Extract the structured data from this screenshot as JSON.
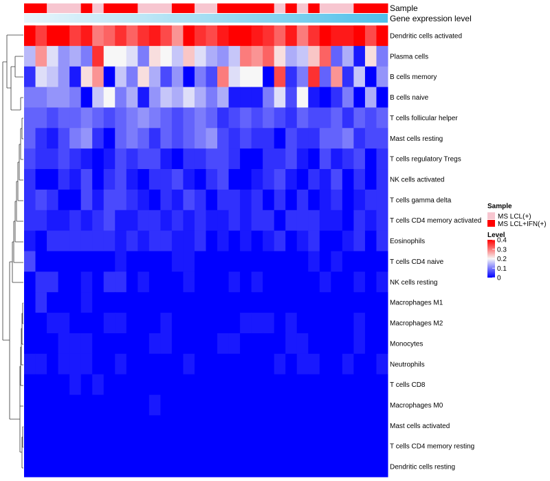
{
  "chart_data": {
    "type": "heatmap",
    "annotation_labels": {
      "sample": "Sample",
      "gene_expression": "Gene expression level"
    },
    "rows": [
      "Dendritic cells activated",
      "Plasma cells",
      "B cells memory",
      "B cells naive",
      "T cells follicular helper",
      "Mast cells resting",
      "T cells regulatory  Tregs",
      "NK cells activated",
      "T cells gamma delta",
      "T cells CD4 memory activated",
      "Eosinophils",
      "T cells CD4 naive",
      "NK cells resting",
      "Macrophages M1",
      "Macrophages M2",
      "Monocytes",
      "Neutrophils",
      "T cells CD8",
      "Macrophages M0",
      "Mast cells activated",
      "T cells CD4 memory resting",
      "Dendritic cells resting"
    ],
    "column_samples": [
      1,
      1,
      0,
      0,
      0,
      1,
      0,
      1,
      1,
      1,
      0,
      0,
      0,
      1,
      1,
      0,
      0,
      1,
      1,
      1,
      1,
      1,
      0,
      1,
      0,
      1,
      0,
      0,
      0,
      1,
      1,
      1
    ],
    "values": [
      [
        0.4,
        0.35,
        0.4,
        0.4,
        0.35,
        0.38,
        0.3,
        0.32,
        0.36,
        0.32,
        0.36,
        0.38,
        0.34,
        0.28,
        0.4,
        0.36,
        0.34,
        0.38,
        0.4,
        0.4,
        0.38,
        0.36,
        0.32,
        0.38,
        0.3,
        0.36,
        0.4,
        0.38,
        0.38,
        0.4,
        0.34,
        0.4
      ],
      [
        0.15,
        0.28,
        0.18,
        0.12,
        0.14,
        0.1,
        0.36,
        0.2,
        0.2,
        0.18,
        0.1,
        0.22,
        0.2,
        0.16,
        0.24,
        0.18,
        0.14,
        0.12,
        0.16,
        0.3,
        0.28,
        0.32,
        0.22,
        0.14,
        0.16,
        0.24,
        0.32,
        0.08,
        0.14,
        0.02,
        0.22,
        0.1
      ],
      [
        0.04,
        0.18,
        0.16,
        0.12,
        0.02,
        0.22,
        0.28,
        0.0,
        0.16,
        0.1,
        0.22,
        0.14,
        0.06,
        0.12,
        0.0,
        0.1,
        0.06,
        0.3,
        0.18,
        0.2,
        0.2,
        0.0,
        0.34,
        0.04,
        0.1,
        0.36,
        0.08,
        0.28,
        0.04,
        0.16,
        0.0,
        0.12
      ],
      [
        0.1,
        0.1,
        0.12,
        0.12,
        0.1,
        0.0,
        0.16,
        0.2,
        0.1,
        0.14,
        0.02,
        0.12,
        0.16,
        0.14,
        0.18,
        0.14,
        0.1,
        0.14,
        0.02,
        0.02,
        0.02,
        0.1,
        0.18,
        0.06,
        0.2,
        0.02,
        0.0,
        0.04,
        0.1,
        0.0,
        0.14,
        0.0
      ],
      [
        0.08,
        0.08,
        0.06,
        0.08,
        0.08,
        0.1,
        0.08,
        0.06,
        0.08,
        0.1,
        0.12,
        0.1,
        0.08,
        0.06,
        0.08,
        0.1,
        0.08,
        0.04,
        0.06,
        0.08,
        0.06,
        0.08,
        0.06,
        0.04,
        0.08,
        0.06,
        0.06,
        0.08,
        0.04,
        0.08,
        0.06,
        0.08
      ],
      [
        0.08,
        0.04,
        0.02,
        0.06,
        0.1,
        0.12,
        0.04,
        0.0,
        0.08,
        0.1,
        0.08,
        0.04,
        0.08,
        0.06,
        0.08,
        0.1,
        0.12,
        0.06,
        0.04,
        0.06,
        0.04,
        0.04,
        0.0,
        0.06,
        0.04,
        0.04,
        0.08,
        0.08,
        0.1,
        0.04,
        0.06,
        0.06
      ],
      [
        0.06,
        0.04,
        0.04,
        0.06,
        0.04,
        0.02,
        0.0,
        0.02,
        0.06,
        0.04,
        0.06,
        0.06,
        0.02,
        0.0,
        0.04,
        0.04,
        0.06,
        0.06,
        0.04,
        0.0,
        0.0,
        0.04,
        0.04,
        0.06,
        0.02,
        0.0,
        0.06,
        0.02,
        0.04,
        0.06,
        0.0,
        0.04
      ],
      [
        0.04,
        0.0,
        0.0,
        0.04,
        0.02,
        0.06,
        0.0,
        0.04,
        0.06,
        0.02,
        0.0,
        0.04,
        0.04,
        0.06,
        0.02,
        0.0,
        0.04,
        0.06,
        0.0,
        0.0,
        0.02,
        0.04,
        0.06,
        0.02,
        0.0,
        0.04,
        0.02,
        0.06,
        0.0,
        0.04,
        0.0,
        0.04
      ],
      [
        0.04,
        0.06,
        0.04,
        0.0,
        0.0,
        0.06,
        0.02,
        0.06,
        0.06,
        0.04,
        0.02,
        0.0,
        0.04,
        0.02,
        0.06,
        0.04,
        0.0,
        0.04,
        0.04,
        0.02,
        0.04,
        0.0,
        0.04,
        0.0,
        0.04,
        0.0,
        0.02,
        0.04,
        0.0,
        0.02,
        0.04,
        0.04
      ],
      [
        0.04,
        0.04,
        0.02,
        0.02,
        0.04,
        0.02,
        0.04,
        0.06,
        0.02,
        0.02,
        0.04,
        0.04,
        0.02,
        0.04,
        0.02,
        0.04,
        0.02,
        0.02,
        0.04,
        0.02,
        0.04,
        0.04,
        0.0,
        0.04,
        0.04,
        0.04,
        0.02,
        0.02,
        0.0,
        0.04,
        0.02,
        0.04
      ],
      [
        0.02,
        0.0,
        0.04,
        0.04,
        0.04,
        0.04,
        0.04,
        0.04,
        0.02,
        0.04,
        0.02,
        0.04,
        0.04,
        0.02,
        0.02,
        0.04,
        0.0,
        0.02,
        0.0,
        0.02,
        0.0,
        0.02,
        0.04,
        0.0,
        0.02,
        0.04,
        0.0,
        0.0,
        0.02,
        0.04,
        0.0,
        0.04
      ],
      [
        0.06,
        0.0,
        0.0,
        0.0,
        0.0,
        0.0,
        0.0,
        0.0,
        0.02,
        0.0,
        0.0,
        0.0,
        0.0,
        0.02,
        0.02,
        0.0,
        0.0,
        0.0,
        0.0,
        0.0,
        0.0,
        0.0,
        0.0,
        0.0,
        0.0,
        0.02,
        0.0,
        0.02,
        0.0,
        0.0,
        0.0,
        0.0
      ],
      [
        0.0,
        0.04,
        0.04,
        0.0,
        0.0,
        0.02,
        0.0,
        0.04,
        0.04,
        0.0,
        0.02,
        0.0,
        0.0,
        0.0,
        0.02,
        0.0,
        0.0,
        0.0,
        0.02,
        0.0,
        0.02,
        0.0,
        0.0,
        0.0,
        0.0,
        0.0,
        0.02,
        0.0,
        0.0,
        0.02,
        0.0,
        0.02
      ],
      [
        0.0,
        0.04,
        0.0,
        0.0,
        0.0,
        0.02,
        0.0,
        0.0,
        0.0,
        0.0,
        0.0,
        0.0,
        0.0,
        0.0,
        0.0,
        0.0,
        0.0,
        0.0,
        0.0,
        0.0,
        0.0,
        0.0,
        0.0,
        0.0,
        0.0,
        0.0,
        0.0,
        0.0,
        0.0,
        0.0,
        0.0,
        0.0
      ],
      [
        0.0,
        0.0,
        0.02,
        0.02,
        0.0,
        0.0,
        0.0,
        0.02,
        0.02,
        0.0,
        0.0,
        0.0,
        0.02,
        0.0,
        0.0,
        0.0,
        0.0,
        0.0,
        0.0,
        0.02,
        0.02,
        0.02,
        0.0,
        0.02,
        0.0,
        0.0,
        0.0,
        0.0,
        0.0,
        0.02,
        0.0,
        0.0
      ],
      [
        0.0,
        0.0,
        0.0,
        0.02,
        0.02,
        0.02,
        0.0,
        0.0,
        0.0,
        0.0,
        0.0,
        0.02,
        0.02,
        0.0,
        0.0,
        0.0,
        0.0,
        0.02,
        0.02,
        0.0,
        0.0,
        0.0,
        0.0,
        0.02,
        0.02,
        0.0,
        0.0,
        0.0,
        0.0,
        0.02,
        0.0,
        0.0
      ],
      [
        0.02,
        0.02,
        0.0,
        0.02,
        0.02,
        0.02,
        0.0,
        0.0,
        0.02,
        0.0,
        0.0,
        0.0,
        0.0,
        0.0,
        0.02,
        0.0,
        0.0,
        0.0,
        0.0,
        0.0,
        0.0,
        0.0,
        0.02,
        0.0,
        0.02,
        0.02,
        0.0,
        0.0,
        0.02,
        0.0,
        0.0,
        0.02
      ],
      [
        0.0,
        0.0,
        0.0,
        0.0,
        0.02,
        0.0,
        0.02,
        0.0,
        0.0,
        0.0,
        0.0,
        0.0,
        0.0,
        0.0,
        0.0,
        0.0,
        0.0,
        0.0,
        0.0,
        0.0,
        0.0,
        0.0,
        0.0,
        0.0,
        0.0,
        0.0,
        0.0,
        0.0,
        0.0,
        0.0,
        0.0,
        0.0
      ],
      [
        0.0,
        0.0,
        0.0,
        0.0,
        0.0,
        0.0,
        0.0,
        0.0,
        0.0,
        0.0,
        0.0,
        0.02,
        0.0,
        0.0,
        0.0,
        0.0,
        0.0,
        0.0,
        0.0,
        0.0,
        0.0,
        0.0,
        0.0,
        0.0,
        0.0,
        0.0,
        0.0,
        0.0,
        0.0,
        0.0,
        0.0,
        0.0
      ],
      [
        0.0,
        0.0,
        0.0,
        0.0,
        0.0,
        0.0,
        0.0,
        0.0,
        0.0,
        0.0,
        0.0,
        0.0,
        0.0,
        0.0,
        0.0,
        0.0,
        0.0,
        0.0,
        0.0,
        0.0,
        0.0,
        0.0,
        0.0,
        0.0,
        0.0,
        0.0,
        0.0,
        0.0,
        0.0,
        0.0,
        0.0,
        0.0
      ],
      [
        0.0,
        0.0,
        0.0,
        0.0,
        0.0,
        0.0,
        0.0,
        0.0,
        0.0,
        0.0,
        0.0,
        0.0,
        0.0,
        0.0,
        0.0,
        0.0,
        0.0,
        0.0,
        0.0,
        0.0,
        0.0,
        0.0,
        0.0,
        0.0,
        0.0,
        0.0,
        0.0,
        0.0,
        0.0,
        0.0,
        0.0,
        0.0
      ],
      [
        0.0,
        0.0,
        0.0,
        0.0,
        0.0,
        0.0,
        0.0,
        0.0,
        0.0,
        0.0,
        0.0,
        0.0,
        0.0,
        0.0,
        0.0,
        0.0,
        0.0,
        0.0,
        0.0,
        0.0,
        0.0,
        0.0,
        0.0,
        0.0,
        0.0,
        0.0,
        0.0,
        0.0,
        0.0,
        0.0,
        0.0,
        0.0
      ]
    ],
    "color_scale": {
      "min": 0,
      "mid": 0.2,
      "max": 0.4,
      "low_color": "#0000ff",
      "mid_color": "#f7f7f7",
      "high_color": "#ff0000"
    },
    "legend": {
      "sample_title": "Sample",
      "sample_levels": [
        {
          "label": "MS LCL(+)",
          "color": "#f7c6d0"
        },
        {
          "label": "MS LCL+IFN(+)",
          "color": "#ff0000"
        }
      ],
      "level_title": "Level",
      "level_ticks": [
        {
          "value": 0.4,
          "label": "0.4"
        },
        {
          "value": 0.3,
          "label": "0.3"
        },
        {
          "value": 0.2,
          "label": "0.2"
        },
        {
          "value": 0.1,
          "label": "0.1"
        },
        {
          "value": 0,
          "label": "0"
        }
      ]
    },
    "gene_expression_gradient": [
      "#e6f4fb",
      "#4fc0ea"
    ],
    "dendrogram": "row clustering tree on left"
  }
}
